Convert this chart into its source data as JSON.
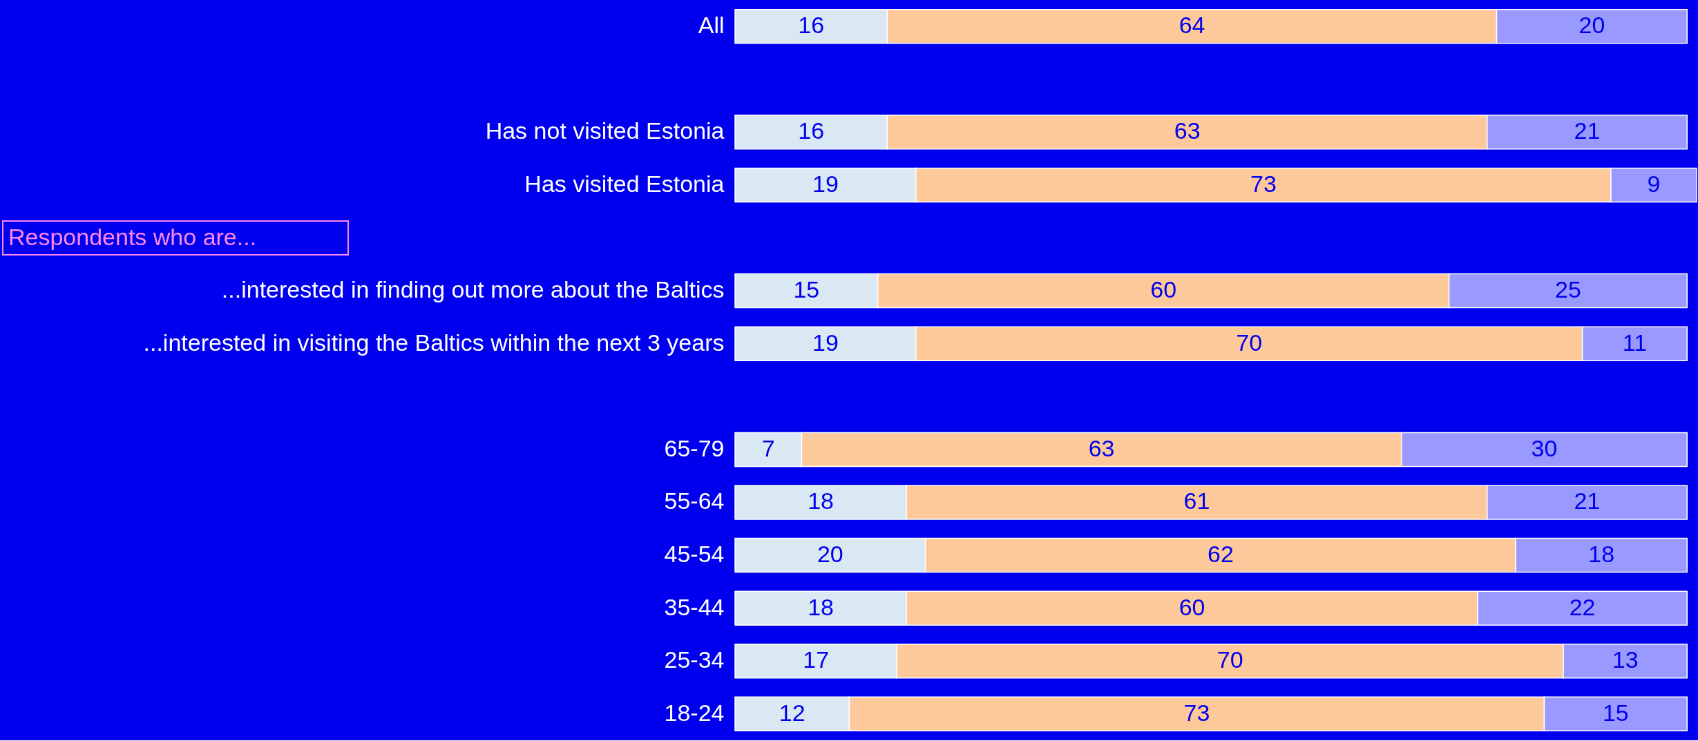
{
  "chart_data": {
    "type": "bar",
    "orientation": "horizontal",
    "stacked": true,
    "data_labels": true,
    "categories": [
      "All",
      null,
      "Has not visited Estonia",
      "Has visited Estonia",
      null,
      "...interested in finding out more about the Baltics",
      "...interested in visiting the Baltics within the next 3 years",
      null,
      "65-79",
      "55-64",
      "45-54",
      "35-44",
      "25-34",
      "18-24"
    ],
    "series": [
      {
        "color": "#d9e8f3",
        "values": [
          16,
          null,
          16,
          19,
          null,
          15,
          19,
          null,
          7,
          18,
          20,
          18,
          17,
          12
        ]
      },
      {
        "color": "#fdc99b",
        "values": [
          64,
          null,
          63,
          73,
          null,
          60,
          70,
          null,
          63,
          61,
          62,
          60,
          70,
          73
        ]
      },
      {
        "color": "#9999ff",
        "values": [
          20,
          null,
          21,
          9,
          null,
          25,
          11,
          null,
          30,
          21,
          18,
          22,
          13,
          15
        ]
      }
    ],
    "annotations": [
      "Respondents who are..."
    ]
  }
}
